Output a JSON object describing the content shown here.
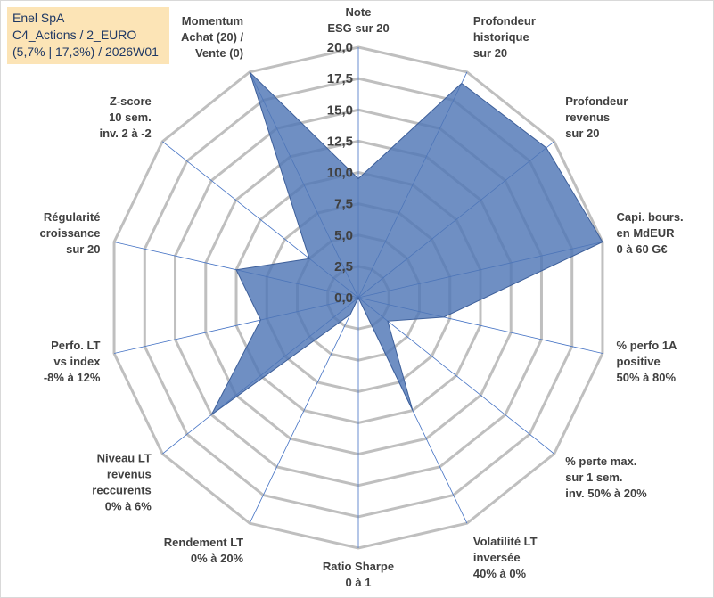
{
  "info": {
    "line1": "Enel SpA",
    "line2": "C4_Actions / 2_EURO",
    "line3": "(5,7% | 17,3%) / 2026W01"
  },
  "chart_data": {
    "type": "radar",
    "title": "",
    "rmin": 0,
    "rmax": 20,
    "ticks": [
      {
        "v": 0,
        "label": "0,0"
      },
      {
        "v": 2.5,
        "label": "2,5"
      },
      {
        "v": 5,
        "label": "5,0"
      },
      {
        "v": 7.5,
        "label": "7,5"
      },
      {
        "v": 10,
        "label": "10,0"
      },
      {
        "v": 12.5,
        "label": "12,5"
      },
      {
        "v": 15,
        "label": "15,0"
      },
      {
        "v": 17.5,
        "label": "17,5"
      },
      {
        "v": 20,
        "label": "20,0"
      }
    ],
    "axes": [
      {
        "lines": [
          "Note",
          "ESG sur 20"
        ],
        "value": 9.5
      },
      {
        "lines": [
          "Profondeur",
          "historique",
          "sur 20"
        ],
        "value": 19.0
      },
      {
        "lines": [
          "Profondeur",
          "revenus",
          "sur 20"
        ],
        "value": 19.2
      },
      {
        "lines": [
          "Capi. bours.",
          "en MdEUR",
          "0 à 60 G€"
        ],
        "value": 20.0
      },
      {
        "lines": [
          "% perfo 1A",
          "positive",
          "50% à 80%"
        ],
        "value": 7.0
      },
      {
        "lines": [
          "% perte max.",
          "sur 1 sem.",
          "inv. 50% à 20%"
        ],
        "value": 3.0
      },
      {
        "lines": [
          "Volatilité LT",
          "inversée",
          "40% à 0%"
        ],
        "value": 10.0
      },
      {
        "lines": [
          "Ratio Sharpe",
          "0 à 1"
        ],
        "value": 0.0
      },
      {
        "lines": [
          "Rendement LT",
          "0% à 20%"
        ],
        "value": 1.5
      },
      {
        "lines": [
          "Niveau LT",
          "revenus",
          "reccurents",
          "0% à 6%"
        ],
        "value": 15.0
      },
      {
        "lines": [
          "Perfo. LT",
          "vs index",
          "-8% à 12%"
        ],
        "value": 8.0
      },
      {
        "lines": [
          "Régularité",
          "croissance",
          "sur 20"
        ],
        "value": 10.0
      },
      {
        "lines": [
          "Z-score",
          "10 sem.",
          "inv. 2 à -2"
        ],
        "value": 5.0
      },
      {
        "lines": [
          "Momentum",
          "Achat (20) /",
          "Vente (0)"
        ],
        "value": 20.0
      }
    ],
    "series": [
      {
        "name": "Enel SpA",
        "color": "#4f76b6"
      }
    ]
  }
}
